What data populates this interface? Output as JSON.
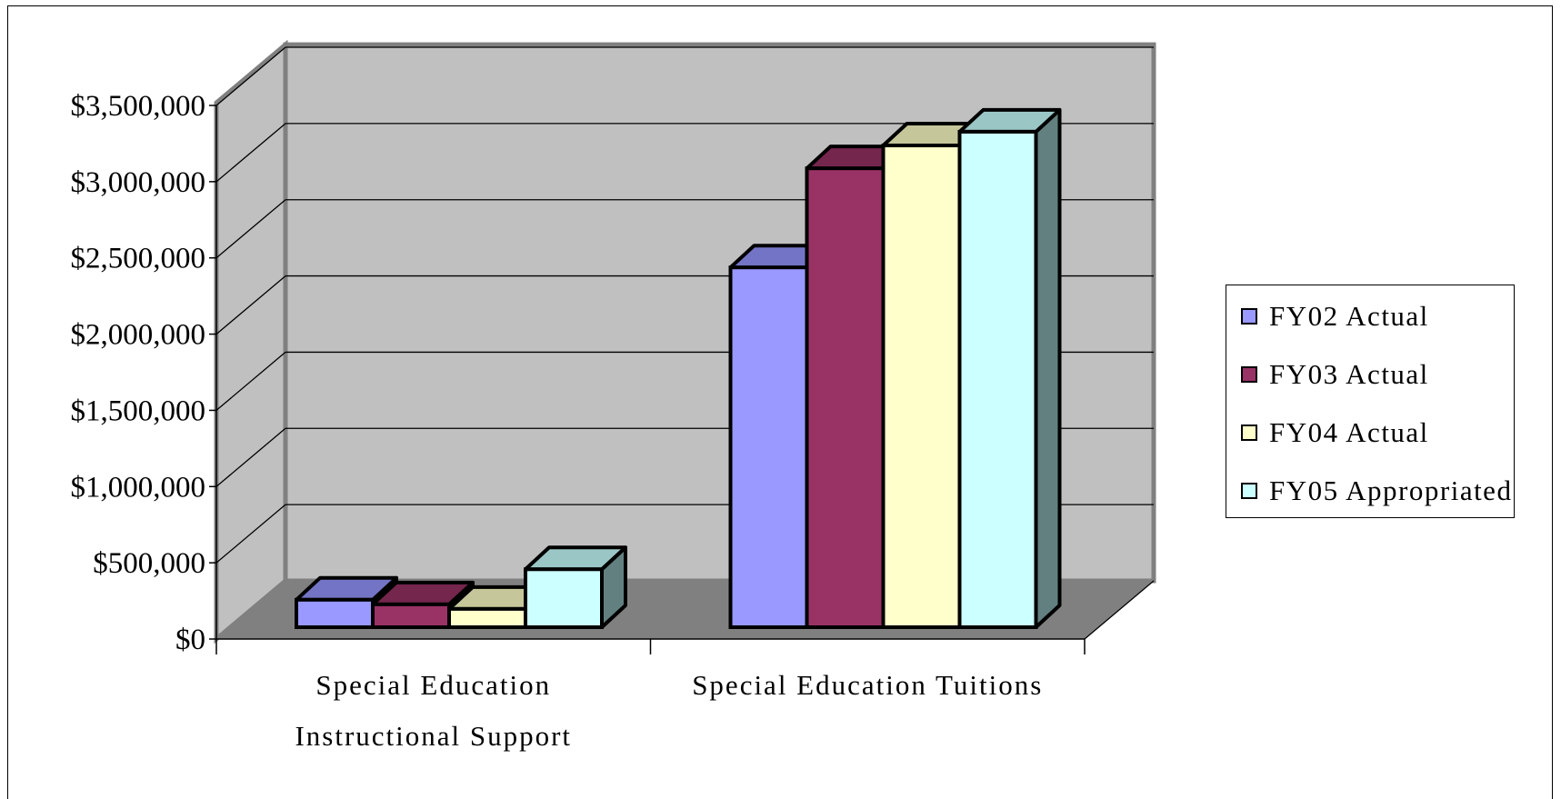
{
  "chart_data": {
    "type": "bar",
    "style": "3d-clustered-column",
    "categories": [
      "Special Education Instructional Support",
      "Special Education Tuitions"
    ],
    "category_label_lines": [
      [
        "Special Education",
        "Instructional Support"
      ],
      [
        "Special Education Tuitions"
      ]
    ],
    "series": [
      {
        "name": "FY02 Actual",
        "values": [
          180000,
          2360000
        ],
        "color": "#9999ff",
        "top_color": "#7474c6",
        "side_color": "#5c5c99"
      },
      {
        "name": "FY03 Actual",
        "values": [
          150000,
          3010000
        ],
        "color": "#993366",
        "top_color": "#74264d",
        "side_color": "#5c1f3d"
      },
      {
        "name": "FY04 Actual",
        "values": [
          120000,
          3160000
        ],
        "color": "#ffffcc",
        "top_color": "#c6c69b",
        "side_color": "#999978"
      },
      {
        "name": "FY05 Appropriated",
        "values": [
          380000,
          3250000
        ],
        "color": "#ccffff",
        "top_color": "#9bc6c6",
        "side_color": "#638080"
      }
    ],
    "y_ticks": [
      "$0",
      "$500,000",
      "$1,000,000",
      "$1,500,000",
      "$2,000,000",
      "$2,500,000",
      "$3,000,000",
      "$3,500,000"
    ],
    "ylim": [
      0,
      3500000
    ],
    "title": "",
    "xlabel": "",
    "ylabel": "",
    "grid": true,
    "legend_position": "right",
    "wall_color": "#c0c0c0",
    "floor_color": "#808080"
  }
}
